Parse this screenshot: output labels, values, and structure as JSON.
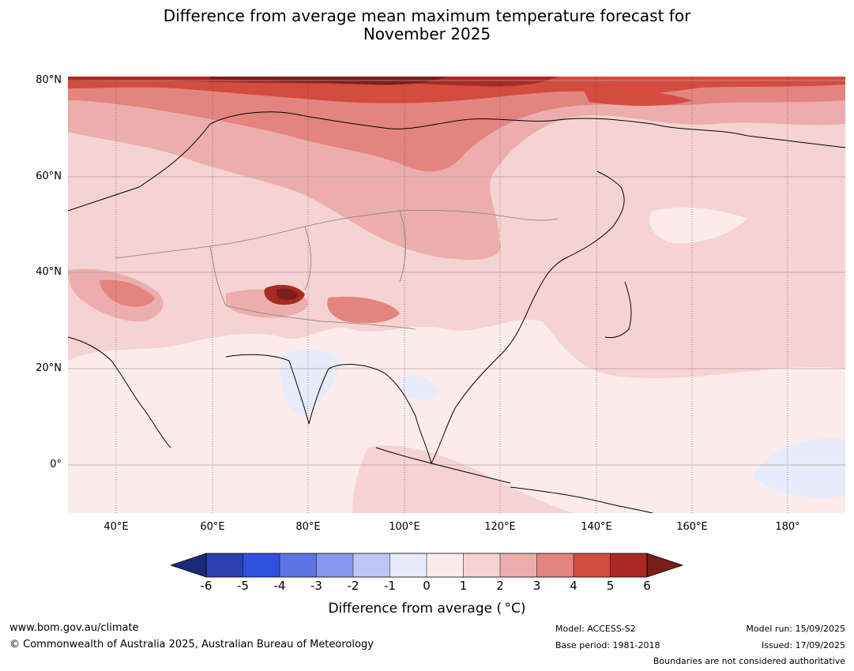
{
  "title_line1": "Difference from average mean maximum temperature forecast for",
  "title_line2": "November 2025",
  "lat_labels": [
    "80°N",
    "60°N",
    "40°N",
    "20°N",
    "0°"
  ],
  "lon_labels": [
    "40°E",
    "60°E",
    "80°E",
    "100°E",
    "120°E",
    "140°E",
    "160°E",
    "180°"
  ],
  "colorbar": {
    "title": "Difference from average ( °C)",
    "ticks": [
      "-6",
      "-5",
      "-4",
      "-3",
      "-2",
      "-1",
      "0",
      "1",
      "2",
      "3",
      "4",
      "5",
      "6"
    ],
    "colors": {
      "below_-6": "#1a2a78",
      "-6_-5": "#2a3fae",
      "-5_-4": "#3050e0",
      "-4_-3": "#5c74e4",
      "-3_-2": "#8898ec",
      "-2_-1": "#bfc6f4",
      "-1_0": "#e7ebfa",
      "0_1": "#fbeceb",
      "1_2": "#f5d3d2",
      "2_3": "#ecaeac",
      "3_4": "#e4847f",
      "4_5": "#d44b40",
      "5_6": "#a82a22",
      "above_6": "#7a1e18"
    }
  },
  "footer": {
    "website": "www.bom.gov.au/climate",
    "copyright": "© Commonwealth of Australia 2025, Australian Bureau of Meteorology",
    "model": "Model: ACCESS-S2",
    "base_period": "Base period: 1981-2018",
    "model_run": "Model run: 15/09/2025",
    "issued": "Issued: 17/09/2025",
    "disclaimer": "Boundaries are not considered authoritative"
  }
}
